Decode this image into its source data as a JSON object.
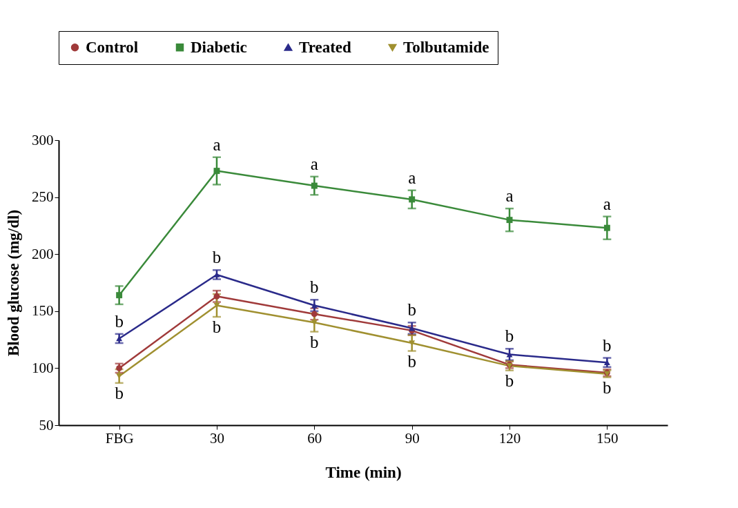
{
  "chart_data": {
    "type": "line",
    "xlabel": "Time (min)",
    "ylabel": "Blood glucose (mg/dl)",
    "categories": [
      "FBG",
      "30",
      "60",
      "90",
      "120",
      "150"
    ],
    "series": [
      {
        "name": "Control",
        "color": "#a03a3a",
        "marker": "circle",
        "values": [
          100,
          163,
          147.5,
          133,
          103,
          96
        ],
        "errors": [
          4,
          5,
          5,
          4,
          3,
          3
        ]
      },
      {
        "name": "Diabetic",
        "color": "#3a8a3a",
        "marker": "square",
        "values": [
          164,
          273,
          260,
          248,
          230,
          223
        ],
        "errors": [
          8,
          12,
          8,
          8,
          10,
          10
        ]
      },
      {
        "name": "Treated",
        "color": "#2a2a8a",
        "marker": "triangle",
        "values": [
          126,
          182,
          155,
          135,
          112,
          105
        ],
        "errors": [
          4,
          4,
          5,
          5,
          5,
          4
        ]
      },
      {
        "name": "Tolbutamide",
        "color": "#a09030",
        "marker": "triangle-down",
        "values": [
          93,
          155,
          140,
          122,
          102,
          95
        ],
        "errors": [
          6,
          10,
          8,
          7,
          4,
          3
        ]
      }
    ],
    "ylim": [
      50,
      300
    ],
    "yticks": [
      50,
      100,
      150,
      200,
      250,
      300
    ],
    "legend": "top",
    "annotations": [
      {
        "text": "a",
        "x": "30",
        "y": 273
      },
      {
        "text": "a",
        "x": "60",
        "y": 260
      },
      {
        "text": "a",
        "x": "90",
        "y": 248
      },
      {
        "text": "a",
        "x": "120",
        "y": 230
      },
      {
        "text": "a",
        "x": "150",
        "y": 223
      },
      {
        "text": "b",
        "x": "30",
        "y": 182
      },
      {
        "text": "b",
        "x": "60",
        "y": 155
      },
      {
        "text": "b",
        "x": "90",
        "y": 135
      },
      {
        "text": "b",
        "x": "120",
        "y": 112
      },
      {
        "text": "b",
        "x": "150",
        "y": 105
      },
      {
        "text": "b",
        "x": "FBG",
        "y": 126
      },
      {
        "text": "b",
        "x": "30",
        "y": 155
      },
      {
        "text": "b",
        "x": "60",
        "y": 140
      },
      {
        "text": "b",
        "x": "90",
        "y": 122
      },
      {
        "text": "b",
        "x": "120",
        "y": 102
      },
      {
        "text": "b",
        "x": "150",
        "y": 95
      },
      {
        "text": "b",
        "x": "FBG",
        "y": 93
      }
    ]
  }
}
